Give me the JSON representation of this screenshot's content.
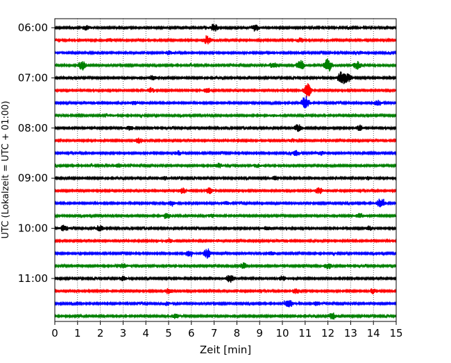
{
  "chart_data": {
    "type": "line",
    "title": "",
    "xlabel": "Zeit  [min]",
    "ylabel": "UTC (Lokalzeit = UTC + 01:00)",
    "xlim": [
      0,
      15
    ],
    "x_ticks": [
      "0",
      "1",
      "2",
      "3",
      "4",
      "5",
      "6",
      "7",
      "8",
      "9",
      "10",
      "11",
      "12",
      "13",
      "14",
      "15"
    ],
    "y_tick_labels": [
      "06:00",
      "07:00",
      "08:00",
      "09:00",
      "10:00",
      "11:00"
    ],
    "trace_interval_min": 15,
    "start_time": "06:00",
    "trace_colors": [
      "#000000",
      "#ff0000",
      "#0000ff",
      "#008000"
    ],
    "grid": "vertical dotted",
    "legend": "none",
    "traces": [
      {
        "start": "06:00",
        "color": "#000000",
        "events": [
          [
            1.4,
            0.35
          ],
          [
            7.0,
            0.6
          ],
          [
            8.8,
            0.5
          ]
        ]
      },
      {
        "start": "06:15",
        "color": "#ff0000",
        "events": [
          [
            2.4,
            0.25
          ],
          [
            6.7,
            0.6
          ],
          [
            10.8,
            0.35
          ]
        ]
      },
      {
        "start": "06:30",
        "color": "#0000ff",
        "events": [
          [
            5.0,
            0.25
          ],
          [
            9.6,
            0.2
          ],
          [
            13.4,
            0.2
          ]
        ]
      },
      {
        "start": "06:45",
        "color": "#008000",
        "events": [
          [
            1.2,
            0.7
          ],
          [
            9.6,
            0.5
          ],
          [
            10.8,
            0.9
          ],
          [
            12.0,
            1.0
          ],
          [
            13.3,
            0.6
          ]
        ]
      },
      {
        "start": "07:00",
        "color": "#000000",
        "events": [
          [
            4.3,
            0.35
          ],
          [
            12.6,
            1.0
          ],
          [
            12.9,
            0.6
          ]
        ]
      },
      {
        "start": "07:15",
        "color": "#ff0000",
        "events": [
          [
            4.2,
            0.4
          ],
          [
            6.7,
            0.35
          ],
          [
            11.1,
            1.0
          ]
        ]
      },
      {
        "start": "07:30",
        "color": "#0000ff",
        "events": [
          [
            3.5,
            0.25
          ],
          [
            11.0,
            1.0
          ],
          [
            14.2,
            0.4
          ]
        ]
      },
      {
        "start": "07:45",
        "color": "#008000",
        "events": [
          [
            2.5,
            0.15
          ],
          [
            9.6,
            0.15
          ]
        ]
      },
      {
        "start": "08:00",
        "color": "#000000",
        "events": [
          [
            3.3,
            0.35
          ],
          [
            10.7,
            0.55
          ],
          [
            13.4,
            0.4
          ]
        ]
      },
      {
        "start": "08:15",
        "color": "#ff0000",
        "events": [
          [
            3.7,
            0.45
          ],
          [
            10.4,
            0.25
          ]
        ]
      },
      {
        "start": "08:30",
        "color": "#0000ff",
        "events": [
          [
            5.4,
            0.35
          ],
          [
            10.6,
            0.4
          ],
          [
            11.7,
            0.3
          ]
        ]
      },
      {
        "start": "08:45",
        "color": "#008000",
        "events": [
          [
            2.8,
            0.3
          ],
          [
            7.2,
            0.35
          ],
          [
            8.9,
            0.25
          ]
        ]
      },
      {
        "start": "09:00",
        "color": "#000000",
        "events": [
          [
            4.8,
            0.25
          ],
          [
            9.7,
            0.3
          ],
          [
            13.8,
            0.25
          ]
        ]
      },
      {
        "start": "09:15",
        "color": "#ff0000",
        "events": [
          [
            5.6,
            0.45
          ],
          [
            6.8,
            0.4
          ],
          [
            11.6,
            0.45
          ]
        ]
      },
      {
        "start": "09:30",
        "color": "#0000ff",
        "events": [
          [
            5.1,
            0.3
          ],
          [
            7.5,
            0.25
          ],
          [
            14.3,
            0.7
          ]
        ]
      },
      {
        "start": "09:45",
        "color": "#008000",
        "events": [
          [
            4.9,
            0.45
          ],
          [
            6.9,
            0.25
          ],
          [
            13.4,
            0.35
          ]
        ]
      },
      {
        "start": "10:00",
        "color": "#000000",
        "events": [
          [
            0.4,
            0.5
          ],
          [
            2.0,
            0.45
          ],
          [
            9.3,
            0.3
          ],
          [
            13.8,
            0.35
          ]
        ]
      },
      {
        "start": "10:15",
        "color": "#ff0000",
        "events": [
          [
            5.0,
            0.35
          ],
          [
            7.2,
            0.2
          ]
        ]
      },
      {
        "start": "10:30",
        "color": "#0000ff",
        "events": [
          [
            5.9,
            0.4
          ],
          [
            6.7,
            0.7
          ],
          [
            9.5,
            0.25
          ]
        ]
      },
      {
        "start": "10:45",
        "color": "#008000",
        "events": [
          [
            3.0,
            0.35
          ],
          [
            8.3,
            0.45
          ],
          [
            12.0,
            0.5
          ]
        ]
      },
      {
        "start": "11:00",
        "color": "#000000",
        "events": [
          [
            3.0,
            0.3
          ],
          [
            7.7,
            0.6
          ],
          [
            10.0,
            0.35
          ]
        ]
      },
      {
        "start": "11:15",
        "color": "#ff0000",
        "events": [
          [
            5.0,
            0.45
          ],
          [
            10.6,
            0.4
          ],
          [
            14.0,
            0.4
          ]
        ]
      },
      {
        "start": "11:30",
        "color": "#0000ff",
        "events": [
          [
            4.9,
            0.3
          ],
          [
            10.3,
            0.55
          ],
          [
            11.5,
            0.3
          ]
        ]
      },
      {
        "start": "11:45",
        "color": "#008000",
        "events": [
          [
            5.3,
            0.35
          ],
          [
            12.2,
            0.5
          ]
        ]
      }
    ]
  }
}
